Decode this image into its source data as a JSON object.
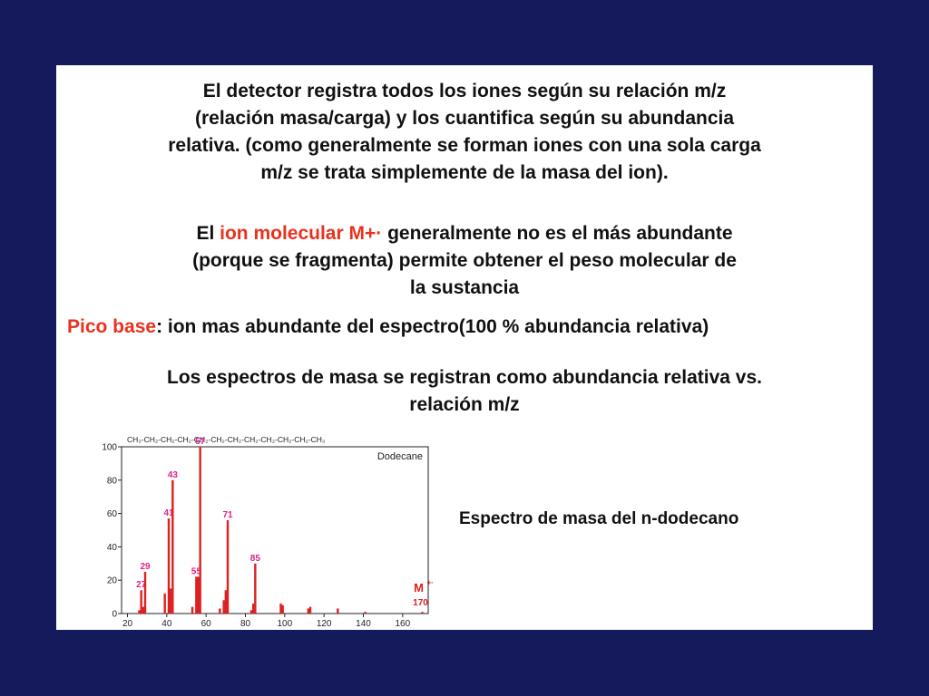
{
  "slide": {
    "para1": [
      "El detector registra todos los iones según su relación m/z",
      "(relación masa/carga) y los cuantifica según su abundancia",
      "relativa. (como generalmente se forman iones con una sola carga",
      "m/z se trata simplemente de la masa del ion)."
    ],
    "para2": {
      "prefix": "El ",
      "highlight": "ion molecular M+·",
      "suffix": " generalmente no es el más abundante",
      "line2": "(porque se fragmenta) permite obtener el peso molecular de",
      "line3": "la sustancia"
    },
    "para3": {
      "highlight": "Pico base",
      "rest": ": ion mas abundante del espectro(100 % abundancia relativa)"
    },
    "para4": [
      "Los espectros de masa se registran como abundancia relativa vs.",
      "relación m/z"
    ],
    "caption": "Espectro de masa del n-dodecano"
  },
  "colors": {
    "background": "#141a5c",
    "highlight": "#e8321e",
    "bars": "#dd2020",
    "labels": "#e0208c"
  },
  "chart_data": {
    "type": "bar",
    "title": "Dodecane",
    "formula": "CH₃-CH₂-CH₂-CH₂-CH₂-CH₂-CH₂-CH₂-CH₂-CH₂-CH₂-CH₃",
    "xlim": [
      17,
      173
    ],
    "ylim": [
      0,
      100
    ],
    "xticks": [
      20,
      40,
      60,
      80,
      100,
      120,
      140,
      160
    ],
    "yticks": [
      0,
      20,
      40,
      60,
      80,
      100
    ],
    "peaks": [
      {
        "mz": 26,
        "value": 2
      },
      {
        "mz": 27,
        "value": 14,
        "label": "27"
      },
      {
        "mz": 28,
        "value": 4
      },
      {
        "mz": 29,
        "value": 25,
        "label": "29"
      },
      {
        "mz": 39,
        "value": 12
      },
      {
        "mz": 41,
        "value": 57,
        "label": "41"
      },
      {
        "mz": 42,
        "value": 15
      },
      {
        "mz": 43,
        "value": 80,
        "label": "43"
      },
      {
        "mz": 53,
        "value": 4
      },
      {
        "mz": 55,
        "value": 22,
        "label": "55"
      },
      {
        "mz": 56,
        "value": 22
      },
      {
        "mz": 57,
        "value": 100,
        "label": "57"
      },
      {
        "mz": 67,
        "value": 3
      },
      {
        "mz": 69,
        "value": 8
      },
      {
        "mz": 70,
        "value": 14
      },
      {
        "mz": 71,
        "value": 56,
        "label": "71"
      },
      {
        "mz": 83,
        "value": 2
      },
      {
        "mz": 84,
        "value": 6
      },
      {
        "mz": 85,
        "value": 30,
        "label": "85"
      },
      {
        "mz": 98,
        "value": 6
      },
      {
        "mz": 99,
        "value": 5
      },
      {
        "mz": 112,
        "value": 3
      },
      {
        "mz": 113,
        "value": 4
      },
      {
        "mz": 127,
        "value": 3
      },
      {
        "mz": 141,
        "value": 1
      },
      {
        "mz": 170,
        "value": 1
      }
    ],
    "molecular_ion": {
      "symbol": "M",
      "superscript": "+·",
      "mz": "170"
    }
  }
}
